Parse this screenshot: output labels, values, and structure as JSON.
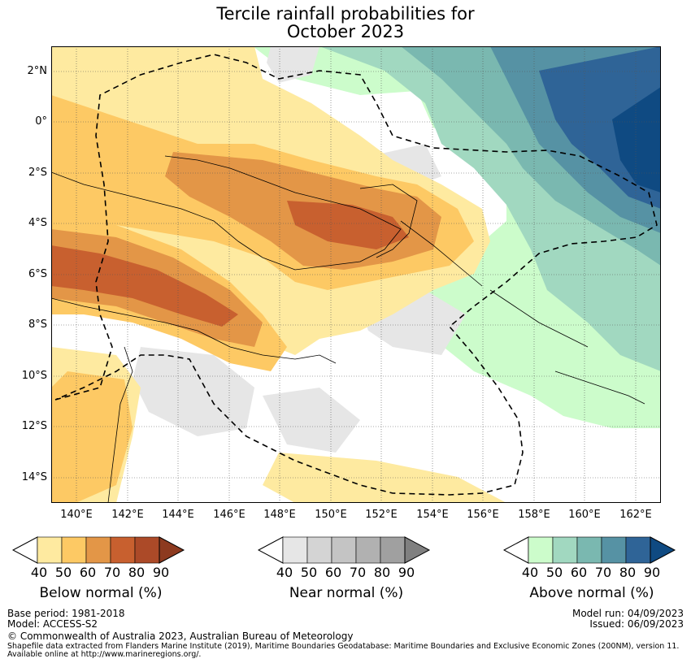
{
  "title": {
    "line1": "Tercile rainfall probabilities for",
    "line2": "October 2023"
  },
  "map": {
    "region": "Papua New Guinea and Solomon Islands",
    "lat_labels": [
      "2°N",
      "0°",
      "2°S",
      "4°S",
      "6°S",
      "8°S",
      "10°S",
      "12°S",
      "14°S"
    ],
    "lon_labels": [
      "140°E",
      "142°E",
      "144°E",
      "146°E",
      "148°E",
      "150°E",
      "152°E",
      "154°E",
      "156°E",
      "158°E",
      "160°E",
      "162°E"
    ],
    "lat_range": [
      -15,
      3
    ],
    "lon_range": [
      139,
      163
    ]
  },
  "colorbars": [
    {
      "name": "Below normal (%)",
      "ticks": [
        "40",
        "50",
        "60",
        "70",
        "80",
        "90"
      ],
      "colors": [
        "#ffffff",
        "#feeaa0",
        "#fdc964",
        "#e39647",
        "#c8602f",
        "#ac4a28",
        "#8d3a1f"
      ]
    },
    {
      "name": "Near normal (%)",
      "ticks": [
        "40",
        "50",
        "60",
        "70",
        "80",
        "90"
      ],
      "colors": [
        "#ffffff",
        "#e6e6e6",
        "#d4d4d4",
        "#c4c4c4",
        "#b1b1b1",
        "#a0a0a0",
        "#808080"
      ]
    },
    {
      "name": "Above normal (%)",
      "ticks": [
        "40",
        "50",
        "60",
        "70",
        "80",
        "90"
      ],
      "colors": [
        "#ffffff",
        "#ccfccb",
        "#a1d8c0",
        "#7ab8b0",
        "#5692a4",
        "#2f6497",
        "#0f4a82"
      ]
    }
  ],
  "footer": {
    "base_period": "Base period: 1981-2018",
    "model": "Model: ACCESS-S2",
    "model_run": "Model run: 04/09/2023",
    "issued": "Issued: 06/09/2023",
    "copyright": "© Commonwealth of Australia 2023, Australian Bureau of Meteorology",
    "shapefile_line1": "Shapefile data extracted from Flanders Marine Institute (2019), Maritime Boundaries Geodatabase: Maritime Boundaries and Exclusive Economic Zones (200NM), version 11.",
    "shapefile_line2": "Available online at http://www.marineregions.org/."
  }
}
